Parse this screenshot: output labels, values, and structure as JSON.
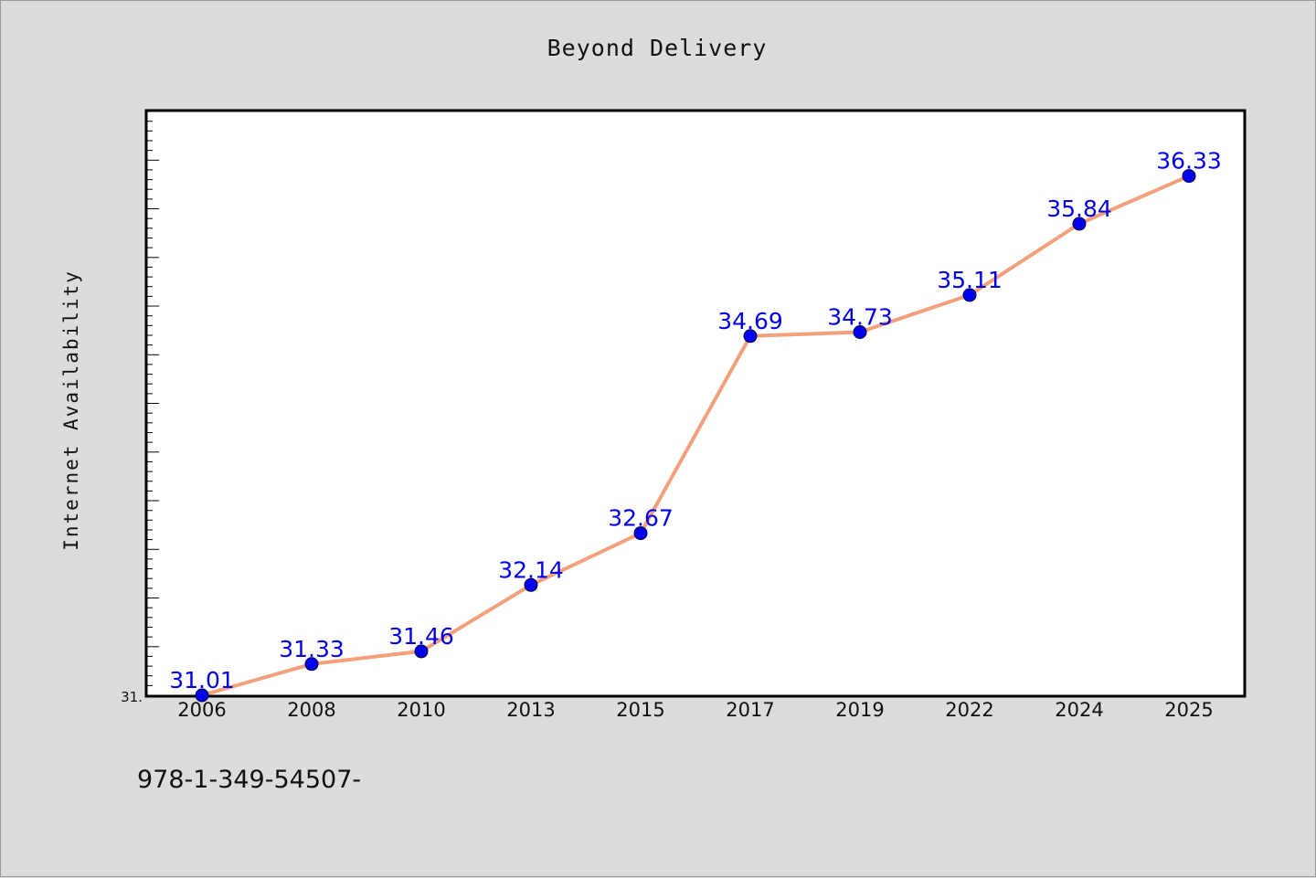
{
  "chart_data": {
    "type": "line",
    "title": "Beyond Delivery",
    "xlabel": "",
    "ylabel": "Internet Availability",
    "categories": [
      "2006",
      "2008",
      "2010",
      "2013",
      "2015",
      "2017",
      "2019",
      "2022",
      "2024",
      "2025"
    ],
    "series": [
      {
        "values": [
          31.01,
          31.33,
          31.46,
          32.14,
          32.67,
          34.69,
          34.73,
          35.11,
          35.84,
          36.33
        ]
      }
    ],
    "data_labels": [
      "31.01",
      "31.33",
      "31.46",
      "32.14",
      "32.67",
      "34.69",
      "34.73",
      "35.11",
      "35.84",
      "36.33"
    ],
    "y_tick_label": "31.",
    "ylim": [
      31.01,
      37.0
    ],
    "grid": false,
    "legend": "none",
    "line_color": "#f4a07c",
    "marker_color": "#0000ee",
    "label_color": "#0000ee"
  },
  "footnote": "978-1-349-54507-"
}
